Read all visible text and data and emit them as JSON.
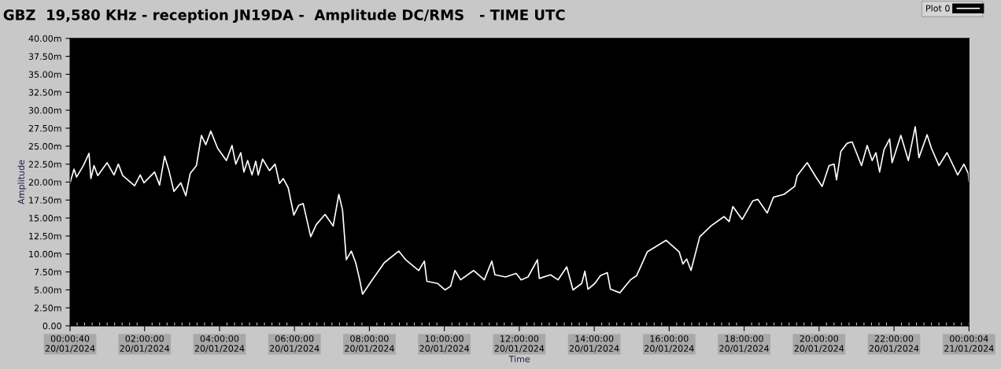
{
  "chart_data": {
    "type": "line",
    "title": "GBZ  19,580 KHz - reception JN19DA -  Amplitude DC/RMS   - TIME UTC",
    "xlabel": "Time",
    "ylabel": "Amplitude",
    "x": [
      "2024-01-20T00:00:40",
      "2024-01-20T00:07",
      "2024-01-20T00:11",
      "2024-01-20T00:22",
      "2024-01-20T00:31",
      "2024-01-20T00:34",
      "2024-01-20T00:39",
      "2024-01-20T00:45",
      "2024-01-20T01:00",
      "2024-01-20T01:11",
      "2024-01-20T01:18",
      "2024-01-20T01:25",
      "2024-01-20T01:44",
      "2024-01-20T01:53",
      "2024-01-20T01:59",
      "2024-01-20T02:16",
      "2024-01-20T02:24",
      "2024-01-20T02:32",
      "2024-01-20T02:39",
      "2024-01-20T02:47",
      "2024-01-20T02:58",
      "2024-01-20T03:06",
      "2024-01-20T03:13",
      "2024-01-20T03:23",
      "2024-01-20T03:31",
      "2024-01-20T03:38",
      "2024-01-20T03:46",
      "2024-01-20T03:57",
      "2024-01-20T04:11",
      "2024-01-20T04:20",
      "2024-01-20T04:26",
      "2024-01-20T04:34",
      "2024-01-20T04:39",
      "2024-01-20T04:45",
      "2024-01-20T04:52",
      "2024-01-20T04:58",
      "2024-01-20T05:02",
      "2024-01-20T05:09",
      "2024-01-20T05:20",
      "2024-01-20T05:29",
      "2024-01-20T05:36",
      "2024-01-20T05:42",
      "2024-01-20T05:50",
      "2024-01-20T05:59",
      "2024-01-20T06:07",
      "2024-01-20T06:14",
      "2024-01-20T06:26",
      "2024-01-20T06:35",
      "2024-01-20T06:49",
      "2024-01-20T07:02",
      "2024-01-20T07:11",
      "2024-01-20T07:17",
      "2024-01-20T07:23",
      "2024-01-20T07:31",
      "2024-01-20T07:38",
      "2024-01-20T07:44",
      "2024-01-20T07:49",
      "2024-01-20T08:03",
      "2024-01-20T08:24",
      "2024-01-20T08:47",
      "2024-01-20T08:58",
      "2024-01-20T09:19",
      "2024-01-20T09:28",
      "2024-01-20T09:32",
      "2024-01-20T09:49",
      "2024-01-20T10:01",
      "2024-01-20T10:10",
      "2024-01-20T10:17",
      "2024-01-20T10:26",
      "2024-01-20T10:47",
      "2024-01-20T11:04",
      "2024-01-20T11:16",
      "2024-01-20T11:21",
      "2024-01-20T11:38",
      "2024-01-20T11:55",
      "2024-01-20T12:03",
      "2024-01-20T12:14",
      "2024-01-20T12:29",
      "2024-01-20T12:32",
      "2024-01-20T12:50",
      "2024-01-20T13:02",
      "2024-01-20T13:16",
      "2024-01-20T13:26",
      "2024-01-20T13:40",
      "2024-01-20T13:45",
      "2024-01-20T13:50",
      "2024-01-20T14:01",
      "2024-01-20T14:10",
      "2024-01-20T14:21",
      "2024-01-20T14:26",
      "2024-01-20T14:41",
      "2024-01-20T14:58",
      "2024-01-20T15:08",
      "2024-01-20T15:25",
      "2024-01-20T15:55",
      "2024-01-20T16:16",
      "2024-01-20T16:22",
      "2024-01-20T16:28",
      "2024-01-20T16:35",
      "2024-01-20T16:49",
      "2024-01-20T17:07",
      "2024-01-20T17:28",
      "2024-01-20T17:36",
      "2024-01-20T17:42",
      "2024-01-20T17:57",
      "2024-01-20T18:14",
      "2024-01-20T18:22",
      "2024-01-20T18:37",
      "2024-01-20T18:47",
      "2024-01-20T19:04",
      "2024-01-20T19:21",
      "2024-01-20T19:25",
      "2024-01-20T19:41",
      "2024-01-20T19:55",
      "2024-01-20T20:05",
      "2024-01-20T20:16",
      "2024-01-20T20:24",
      "2024-01-20T20:28",
      "2024-01-20T20:35",
      "2024-01-20T20:45",
      "2024-01-20T20:53",
      "2024-01-20T21:08",
      "2024-01-20T21:17",
      "2024-01-20T21:25",
      "2024-01-20T21:31",
      "2024-01-20T21:37",
      "2024-01-20T21:44",
      "2024-01-20T21:53",
      "2024-01-20T21:57",
      "2024-01-20T22:11",
      "2024-01-20T22:23",
      "2024-01-20T22:34",
      "2024-01-20T22:40",
      "2024-01-20T22:53",
      "2024-01-20T23:00",
      "2024-01-20T23:12",
      "2024-01-20T23:25",
      "2024-01-20T23:42",
      "2024-01-20T23:52",
      "2024-01-20T23:59",
      "2024-01-21T00:00:04"
    ],
    "series": [
      {
        "name": "Plot 0",
        "color": "#ffffff",
        "values": [
          19.9,
          21.8,
          20.7,
          22.3,
          24.0,
          20.5,
          22.3,
          20.9,
          22.7,
          21.0,
          22.5,
          20.9,
          19.5,
          21.0,
          19.9,
          21.4,
          19.6,
          23.6,
          21.6,
          18.7,
          19.9,
          18.1,
          21.2,
          22.3,
          26.5,
          25.2,
          27.1,
          24.7,
          23.0,
          25.1,
          22.5,
          24.1,
          21.4,
          23.0,
          21.0,
          22.9,
          21.0,
          23.2,
          21.6,
          22.5,
          19.8,
          20.5,
          19.2,
          15.4,
          16.8,
          17.0,
          12.4,
          14.1,
          15.5,
          13.9,
          18.3,
          16.1,
          9.2,
          10.4,
          8.8,
          6.6,
          4.4,
          6.2,
          8.8,
          10.4,
          9.2,
          7.7,
          9.0,
          6.2,
          5.9,
          5.0,
          5.5,
          7.7,
          6.4,
          7.7,
          6.4,
          9.0,
          7.1,
          6.8,
          7.3,
          6.4,
          6.8,
          9.2,
          6.6,
          7.1,
          6.4,
          8.2,
          5.0,
          5.9,
          7.6,
          5.1,
          5.9,
          7.0,
          7.4,
          5.1,
          4.6,
          6.4,
          7.0,
          10.3,
          11.9,
          10.3,
          8.6,
          9.3,
          7.7,
          12.4,
          13.9,
          15.2,
          14.5,
          16.6,
          14.8,
          17.4,
          17.6,
          15.7,
          17.9,
          18.3,
          19.4,
          20.9,
          22.7,
          20.7,
          19.4,
          22.3,
          22.5,
          20.3,
          24.3,
          25.4,
          25.6,
          22.3,
          25.1,
          23.0,
          24.1,
          21.4,
          24.5,
          26.0,
          22.7,
          26.5,
          23.0,
          27.7,
          23.4,
          26.6,
          24.7,
          22.3,
          24.1,
          21.0,
          22.5,
          21.2,
          20.1
        ]
      }
    ],
    "xlim": [
      "2024-01-20T00:00:40",
      "2024-01-21T00:00:04"
    ],
    "xticks": [
      {
        "value": "2024-01-20T00:00:40",
        "label": "00:00:40\n20/01/2024"
      },
      {
        "value": "2024-01-20T02:00",
        "label": "02:00:00\n20/01/2024"
      },
      {
        "value": "2024-01-20T04:00",
        "label": "04:00:00\n20/01/2024"
      },
      {
        "value": "2024-01-20T06:00",
        "label": "06:00:00\n20/01/2024"
      },
      {
        "value": "2024-01-20T08:00",
        "label": "08:00:00\n20/01/2024"
      },
      {
        "value": "2024-01-20T10:00",
        "label": "10:00:00\n20/01/2024"
      },
      {
        "value": "2024-01-20T12:00",
        "label": "12:00:00\n20/01/2024"
      },
      {
        "value": "2024-01-20T14:00",
        "label": "14:00:00\n20/01/2024"
      },
      {
        "value": "2024-01-20T16:00",
        "label": "16:00:00\n20/01/2024"
      },
      {
        "value": "2024-01-20T18:00",
        "label": "18:00:00\n20/01/2024"
      },
      {
        "value": "2024-01-20T20:00",
        "label": "20:00:00\n20/01/2024"
      },
      {
        "value": "2024-01-20T22:00",
        "label": "22:00:00\n20/01/2024"
      },
      {
        "value": "2024-01-21T00:00:04",
        "label": "00:00:04\n21/01/2024"
      }
    ],
    "ylim": [
      0,
      40
    ],
    "yticks": [
      {
        "value": 0,
        "label": "0.00"
      },
      {
        "value": 2.5,
        "label": "2.50m"
      },
      {
        "value": 5,
        "label": "5.00m"
      },
      {
        "value": 7.5,
        "label": "7.50m"
      },
      {
        "value": 10,
        "label": "10.00m"
      },
      {
        "value": 12.5,
        "label": "12.50m"
      },
      {
        "value": 15,
        "label": "15.00m"
      },
      {
        "value": 17.5,
        "label": "17.50m"
      },
      {
        "value": 20,
        "label": "20.00m"
      },
      {
        "value": 22.5,
        "label": "22.50m"
      },
      {
        "value": 25,
        "label": "25.00m"
      },
      {
        "value": 27.5,
        "label": "27.50m"
      },
      {
        "value": 30,
        "label": "30.00m"
      },
      {
        "value": 32.5,
        "label": "32.50m"
      },
      {
        "value": 35,
        "label": "35.00m"
      },
      {
        "value": 37.5,
        "label": "37.50m"
      },
      {
        "value": 40,
        "label": "40.00m"
      }
    ],
    "grid": false,
    "legend": "top right",
    "marker": "none",
    "line_style": "solid"
  }
}
